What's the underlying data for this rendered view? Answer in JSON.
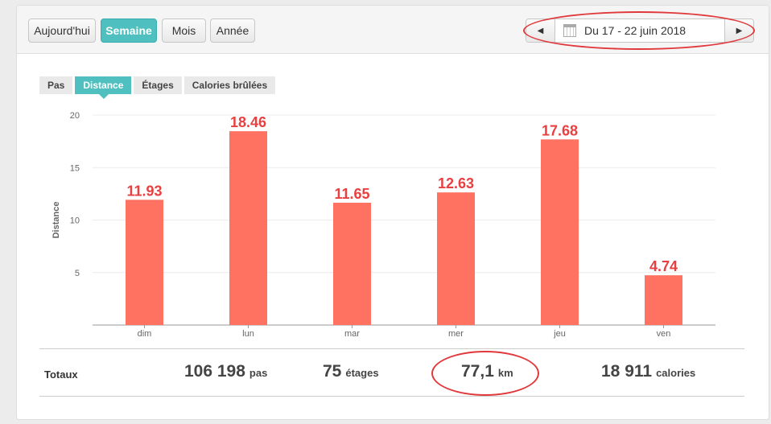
{
  "period_tabs": [
    {
      "label": "Aujourd'hui",
      "active": false
    },
    {
      "label": "Semaine",
      "active": true
    },
    {
      "label": "Mois",
      "active": false
    },
    {
      "label": "Année",
      "active": false
    }
  ],
  "date_range": {
    "label": "Du 17 - 22 juin 2018",
    "prev_icon": "triangle-left-icon",
    "next_icon": "triangle-right-icon",
    "calendar_icon": "calendar-icon"
  },
  "metric_tabs": [
    {
      "label": "Pas",
      "active": false
    },
    {
      "label": "Distance",
      "active": true
    },
    {
      "label": "Étages",
      "active": false
    },
    {
      "label": "Calories brûlées",
      "active": false
    }
  ],
  "chart_data": {
    "type": "bar",
    "categories": [
      "dim",
      "lun",
      "mar",
      "mer",
      "jeu",
      "ven"
    ],
    "values": [
      11.93,
      18.46,
      11.65,
      12.63,
      17.68,
      4.74
    ],
    "value_labels": [
      "11.93",
      "18.46",
      "11.65",
      "12.63",
      "17.68",
      "4.74"
    ],
    "ylabel": "Distance",
    "xlabel": "",
    "ylim": [
      0,
      20
    ],
    "yticks": [
      5,
      10,
      15,
      20
    ],
    "grid": true,
    "bar_color": "#ff7261",
    "label_color": "#e84040"
  },
  "totals": {
    "label": "Totaux",
    "steps": {
      "value": "106 198",
      "unit": "pas"
    },
    "floors": {
      "value": "75",
      "unit": "étages"
    },
    "distance": {
      "value": "77,1",
      "unit": "km"
    },
    "calories": {
      "value": "18 911",
      "unit": "calories"
    }
  },
  "colors": {
    "accent": "#4fc0bf",
    "annotation": "#e0383b"
  }
}
